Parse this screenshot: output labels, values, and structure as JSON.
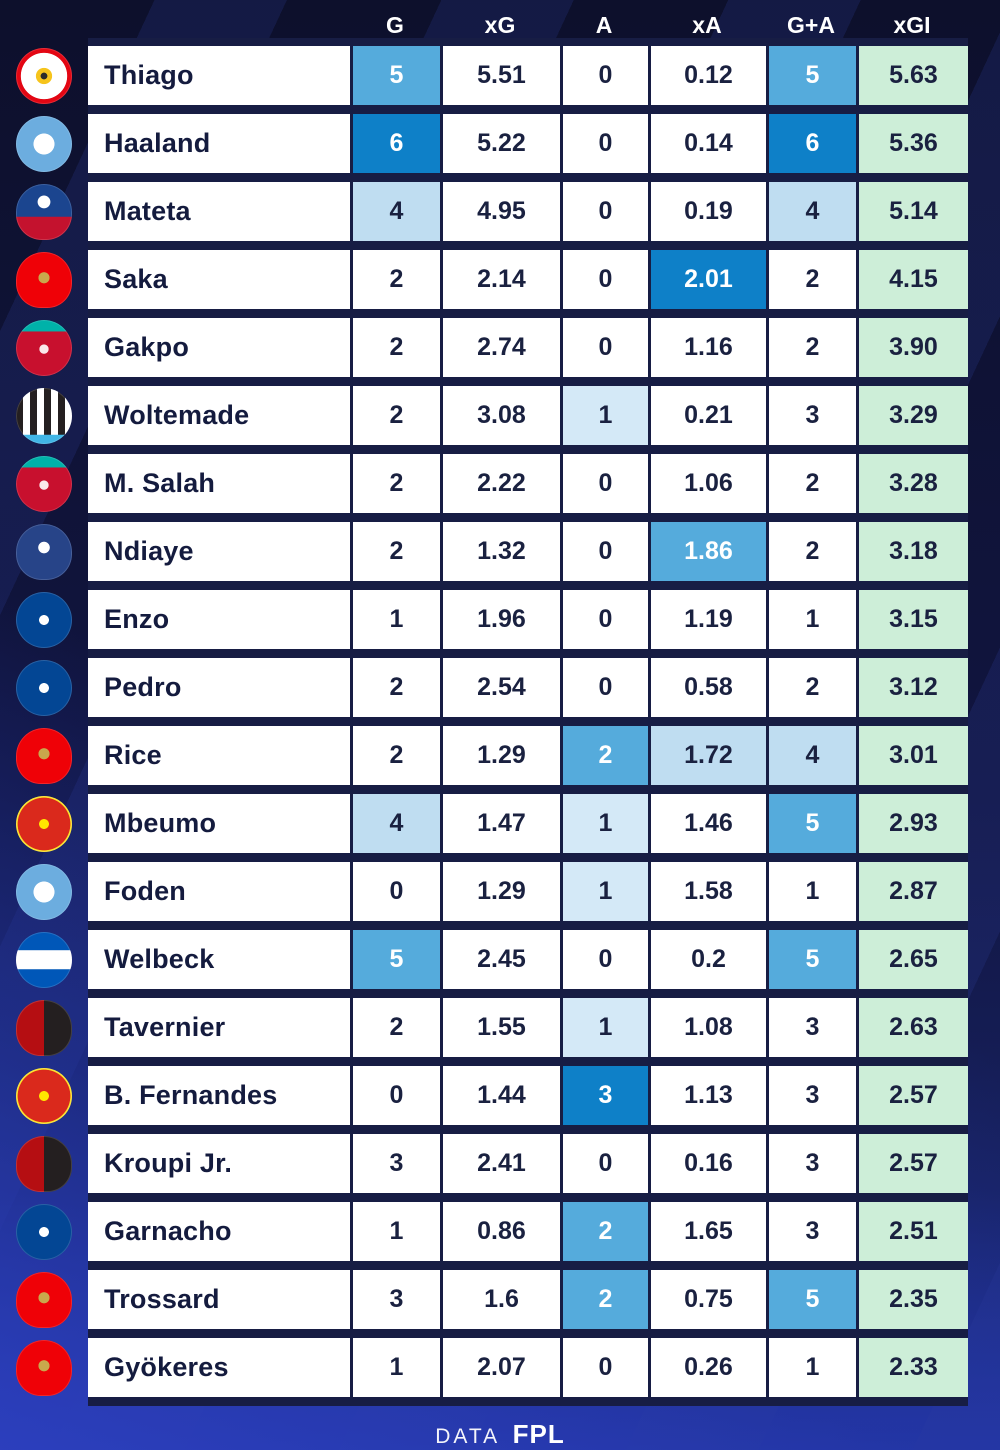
{
  "footer": {
    "prefix": "DATA",
    "brand": "FPL"
  },
  "colors": {
    "background_top": "#0d102c",
    "background_bottom": "#2336a6",
    "row_background": "#ffffff",
    "separator": "#171d44",
    "text_dark": "#141b3e",
    "heat_level1": "#d4e9f7",
    "heat_level2": "#bfddf1",
    "heat_level3": "#55abdc",
    "heat_level4": "#0e80c8",
    "xgi_green": "#cdeed8"
  },
  "chart_data": {
    "type": "table",
    "title": "",
    "columns": [
      "G",
      "xG",
      "A",
      "xA",
      "G+A",
      "xGI"
    ],
    "legend_position": "none",
    "rows": [
      {
        "player": "Thiago",
        "team": "brentford",
        "g": "5",
        "xg": "5.51",
        "a": "0",
        "xa": "0.12",
        "ga": "5",
        "xgi": "5.63",
        "heat": {
          "g": "h3",
          "ga": "h3"
        }
      },
      {
        "player": "Haaland",
        "team": "mancity",
        "g": "6",
        "xg": "5.22",
        "a": "0",
        "xa": "0.14",
        "ga": "6",
        "xgi": "5.36",
        "heat": {
          "g": "h4",
          "ga": "h4"
        }
      },
      {
        "player": "Mateta",
        "team": "palace",
        "g": "4",
        "xg": "4.95",
        "a": "0",
        "xa": "0.19",
        "ga": "4",
        "xgi": "5.14",
        "heat": {
          "g": "h2",
          "ga": "h2"
        }
      },
      {
        "player": "Saka",
        "team": "arsenal",
        "g": "2",
        "xg": "2.14",
        "a": "0",
        "xa": "2.01",
        "ga": "2",
        "xgi": "4.15",
        "heat": {
          "xa": "h4"
        }
      },
      {
        "player": "Gakpo",
        "team": "liverpool",
        "g": "2",
        "xg": "2.74",
        "a": "0",
        "xa": "1.16",
        "ga": "2",
        "xgi": "3.90",
        "heat": {}
      },
      {
        "player": "Woltemade",
        "team": "newcastle",
        "g": "2",
        "xg": "3.08",
        "a": "1",
        "xa": "0.21",
        "ga": "3",
        "xgi": "3.29",
        "heat": {
          "a": "h1"
        }
      },
      {
        "player": "M. Salah",
        "team": "liverpool",
        "g": "2",
        "xg": "2.22",
        "a": "0",
        "xa": "1.06",
        "ga": "2",
        "xgi": "3.28",
        "heat": {}
      },
      {
        "player": "Ndiaye",
        "team": "everton",
        "g": "2",
        "xg": "1.32",
        "a": "0",
        "xa": "1.86",
        "ga": "2",
        "xgi": "3.18",
        "heat": {
          "xa": "h3"
        }
      },
      {
        "player": "Enzo",
        "team": "chelsea",
        "g": "1",
        "xg": "1.96",
        "a": "0",
        "xa": "1.19",
        "ga": "1",
        "xgi": "3.15",
        "heat": {}
      },
      {
        "player": "Pedro",
        "team": "chelsea",
        "g": "2",
        "xg": "2.54",
        "a": "0",
        "xa": "0.58",
        "ga": "2",
        "xgi": "3.12",
        "heat": {}
      },
      {
        "player": "Rice",
        "team": "arsenal",
        "g": "2",
        "xg": "1.29",
        "a": "2",
        "xa": "1.72",
        "ga": "4",
        "xgi": "3.01",
        "heat": {
          "a": "h3",
          "xa": "h2",
          "ga": "h2"
        }
      },
      {
        "player": "Mbeumo",
        "team": "manutd",
        "g": "4",
        "xg": "1.47",
        "a": "1",
        "xa": "1.46",
        "ga": "5",
        "xgi": "2.93",
        "heat": {
          "g": "h2",
          "a": "h1",
          "ga": "h3"
        }
      },
      {
        "player": "Foden",
        "team": "mancity",
        "g": "0",
        "xg": "1.29",
        "a": "1",
        "xa": "1.58",
        "ga": "1",
        "xgi": "2.87",
        "heat": {
          "a": "h1"
        }
      },
      {
        "player": "Welbeck",
        "team": "brighton",
        "g": "5",
        "xg": "2.45",
        "a": "0",
        "xa": "0.2",
        "ga": "5",
        "xgi": "2.65",
        "heat": {
          "g": "h3",
          "ga": "h3"
        }
      },
      {
        "player": "Tavernier",
        "team": "bournemouth",
        "g": "2",
        "xg": "1.55",
        "a": "1",
        "xa": "1.08",
        "ga": "3",
        "xgi": "2.63",
        "heat": {
          "a": "h1"
        }
      },
      {
        "player": "B. Fernandes",
        "team": "manutd",
        "g": "0",
        "xg": "1.44",
        "a": "3",
        "xa": "1.13",
        "ga": "3",
        "xgi": "2.57",
        "heat": {
          "a": "h4"
        }
      },
      {
        "player": "Kroupi Jr.",
        "team": "bournemouth",
        "g": "3",
        "xg": "2.41",
        "a": "0",
        "xa": "0.16",
        "ga": "3",
        "xgi": "2.57",
        "heat": {}
      },
      {
        "player": "Garnacho",
        "team": "chelsea",
        "g": "1",
        "xg": "0.86",
        "a": "2",
        "xa": "1.65",
        "ga": "3",
        "xgi": "2.51",
        "heat": {
          "a": "h3"
        }
      },
      {
        "player": "Trossard",
        "team": "arsenal",
        "g": "3",
        "xg": "1.6",
        "a": "2",
        "xa": "0.75",
        "ga": "5",
        "xgi": "2.35",
        "heat": {
          "a": "h3",
          "ga": "h3"
        }
      },
      {
        "player": "Gyökeres",
        "team": "arsenal",
        "g": "1",
        "xg": "2.07",
        "a": "0",
        "xa": "0.26",
        "ga": "1",
        "xgi": "2.33",
        "heat": {}
      }
    ]
  }
}
